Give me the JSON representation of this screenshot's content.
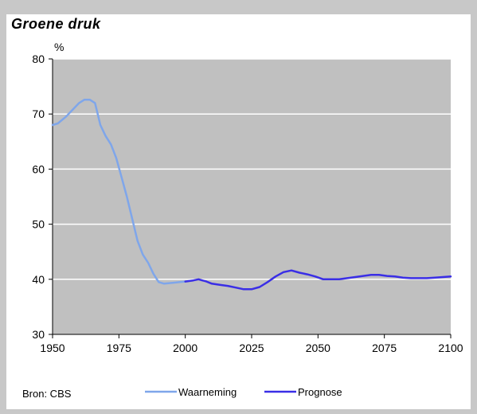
{
  "chart_data": {
    "type": "line",
    "title": "Groene druk",
    "ylabel": "%",
    "xlabel": "",
    "source": "Bron: CBS",
    "xlim": [
      1950,
      2100
    ],
    "ylim": [
      30,
      80
    ],
    "x_ticks": [
      1950,
      1975,
      2000,
      2025,
      2050,
      2075,
      2100
    ],
    "y_ticks": [
      30,
      40,
      50,
      60,
      70,
      80
    ],
    "grid": true,
    "legend_position": "bottom",
    "series": [
      {
        "name": "Waarneming",
        "color": "#7fa6ea",
        "points": [
          [
            1950,
            68
          ],
          [
            1952,
            68.3
          ],
          [
            1955,
            69.5
          ],
          [
            1958,
            71.0
          ],
          [
            1960,
            72.0
          ],
          [
            1962,
            72.6
          ],
          [
            1964,
            72.6
          ],
          [
            1966,
            72.0
          ],
          [
            1967,
            70
          ],
          [
            1968,
            68
          ],
          [
            1970,
            66
          ],
          [
            1972,
            64.5
          ],
          [
            1974,
            62
          ],
          [
            1976,
            58.5
          ],
          [
            1978,
            55
          ],
          [
            1980,
            51
          ],
          [
            1982,
            47
          ],
          [
            1984,
            44.5
          ],
          [
            1986,
            43
          ],
          [
            1988,
            41
          ],
          [
            1990,
            39.5
          ],
          [
            1992,
            39.2
          ],
          [
            1994,
            39.3
          ],
          [
            1996,
            39.4
          ],
          [
            1998,
            39.5
          ],
          [
            2000,
            39.6
          ]
        ]
      },
      {
        "name": "Prognose",
        "color": "#3a2ee6",
        "points": [
          [
            2000,
            39.6
          ],
          [
            2003,
            39.8
          ],
          [
            2005,
            40.0
          ],
          [
            2008,
            39.6
          ],
          [
            2010,
            39.2
          ],
          [
            2013,
            39.0
          ],
          [
            2016,
            38.8
          ],
          [
            2019,
            38.5
          ],
          [
            2022,
            38.2
          ],
          [
            2025,
            38.2
          ],
          [
            2028,
            38.6
          ],
          [
            2031,
            39.5
          ],
          [
            2034,
            40.5
          ],
          [
            2037,
            41.3
          ],
          [
            2040,
            41.6
          ],
          [
            2043,
            41.2
          ],
          [
            2046,
            40.9
          ],
          [
            2049,
            40.5
          ],
          [
            2052,
            40.0
          ],
          [
            2055,
            40.0
          ],
          [
            2058,
            40.0
          ],
          [
            2061,
            40.2
          ],
          [
            2064,
            40.4
          ],
          [
            2067,
            40.6
          ],
          [
            2070,
            40.8
          ],
          [
            2073,
            40.8
          ],
          [
            2076,
            40.6
          ],
          [
            2079,
            40.5
          ],
          [
            2082,
            40.3
          ],
          [
            2085,
            40.2
          ],
          [
            2088,
            40.2
          ],
          [
            2091,
            40.2
          ],
          [
            2094,
            40.3
          ],
          [
            2097,
            40.4
          ],
          [
            2100,
            40.5
          ]
        ]
      }
    ]
  },
  "colors": {
    "plot_background": "#c0c0c0",
    "gridline": "#ffffff",
    "axis": "#000000"
  }
}
